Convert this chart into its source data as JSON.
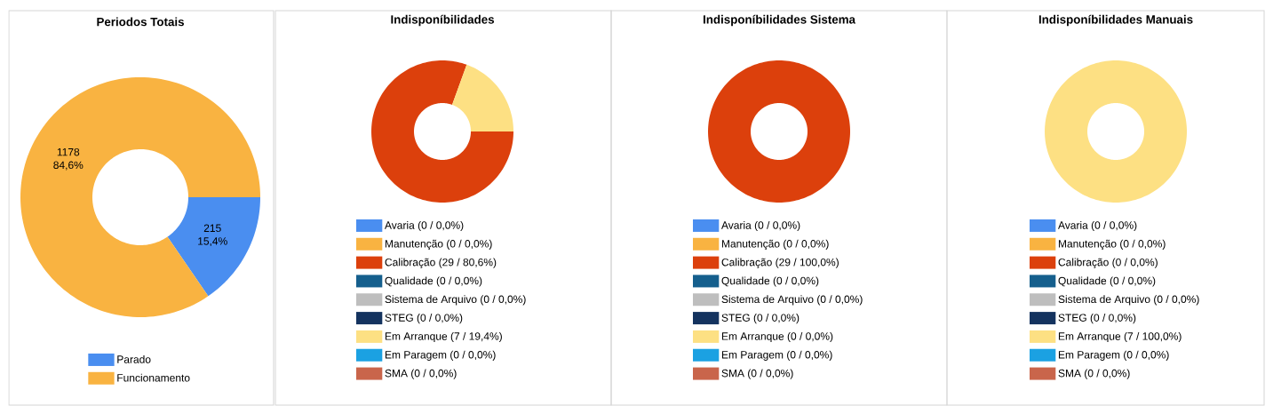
{
  "chart_data": [
    {
      "type": "donut",
      "title": "Periodos Totais",
      "categories": [
        "Parado",
        "Funcionamento"
      ],
      "values": [
        215,
        1178
      ],
      "colors": [
        "#4a8ef0",
        "#f9b341"
      ],
      "value_labels": [
        "215 15,4%",
        "1178 84,6%"
      ],
      "legend": "bottom"
    },
    {
      "type": "donut",
      "title": "Indisponíbilidades",
      "categories": [
        "Avaria (0 / 0,0%)",
        "Manutenção (0 / 0,0%)",
        "Calibração (29 / 80,6%)",
        "Qualidade (0 / 0,0%)",
        "Sistema de Arquivo (0 / 0,0%)",
        "STEG (0 / 0,0%)",
        "Em Arranque (7 / 19,4%)",
        "Em Paragem (0 / 0,0%)",
        "SMA (0 / 0,0%)"
      ],
      "values": [
        0,
        0,
        29,
        0,
        0,
        0,
        7,
        0,
        0
      ],
      "colors": [
        "#4a8ef0",
        "#f9b341",
        "#dc400c",
        "#155f8d",
        "#bebebe",
        "#14335f",
        "#fde083",
        "#1ba1e2",
        "#c9654b"
      ],
      "legend": "bottom"
    },
    {
      "type": "donut",
      "title": "Indisponíbilidades Sistema",
      "categories": [
        "Avaria (0 / 0,0%)",
        "Manutenção (0 / 0,0%)",
        "Calibração (29 / 100,0%)",
        "Qualidade (0 / 0,0%)",
        "Sistema de Arquivo (0 / 0,0%)",
        "STEG (0 / 0,0%)",
        "Em Arranque (0 / 0,0%)",
        "Em Paragem (0 / 0,0%)",
        "SMA (0 / 0,0%)"
      ],
      "values": [
        0,
        0,
        29,
        0,
        0,
        0,
        0,
        0,
        0
      ],
      "colors": [
        "#4a8ef0",
        "#f9b341",
        "#dc400c",
        "#155f8d",
        "#bebebe",
        "#14335f",
        "#fde083",
        "#1ba1e2",
        "#c9654b"
      ],
      "legend": "bottom"
    },
    {
      "type": "donut",
      "title": "Indisponíbilidades Manuais",
      "categories": [
        "Avaria (0 / 0,0%)",
        "Manutenção (0 / 0,0%)",
        "Calibração (0 / 0,0%)",
        "Qualidade (0 / 0,0%)",
        "Sistema de Arquivo (0 / 0,0%)",
        "STEG (0 / 0,0%)",
        "Em Arranque (7 / 100,0%)",
        "Em Paragem (0 / 0,0%)",
        "SMA (0 / 0,0%)"
      ],
      "values": [
        0,
        0,
        0,
        0,
        0,
        0,
        7,
        0,
        0
      ],
      "colors": [
        "#4a8ef0",
        "#f9b341",
        "#dc400c",
        "#155f8d",
        "#bebebe",
        "#14335f",
        "#fde083",
        "#1ba1e2",
        "#c9654b"
      ],
      "legend": "bottom"
    }
  ]
}
